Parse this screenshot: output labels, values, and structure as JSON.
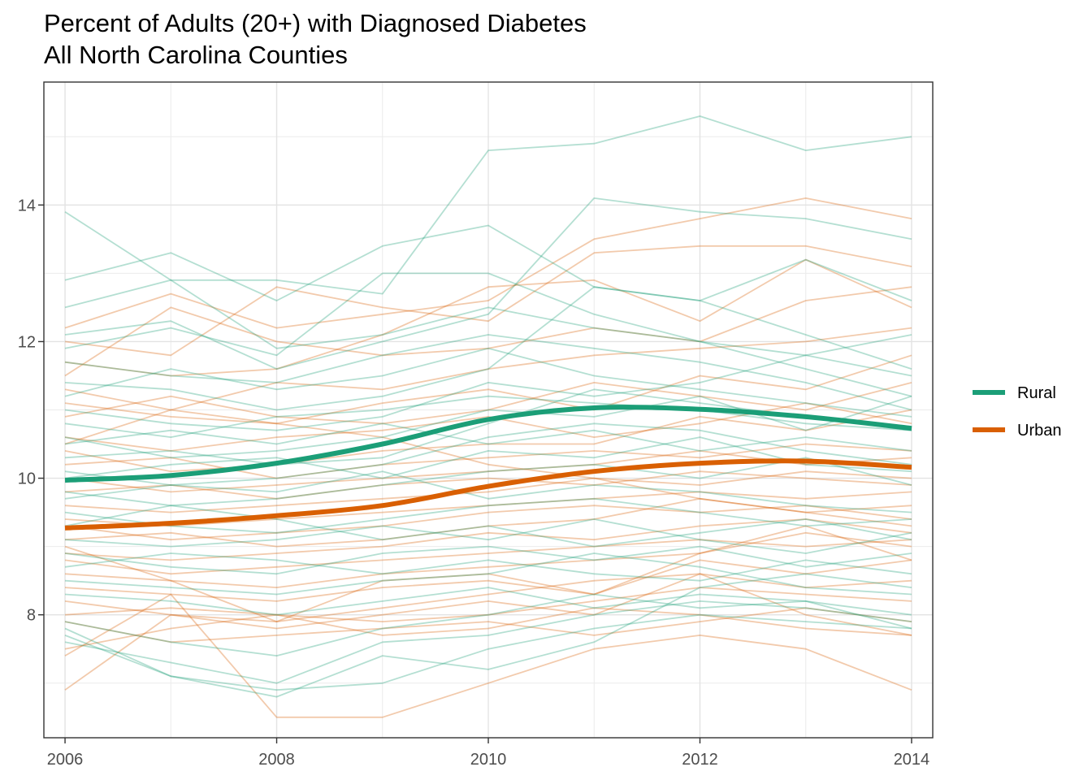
{
  "chart_data": {
    "type": "line",
    "title": "Percent of Adults (20+) with Diagnosed Diabetes",
    "subtitle": "All North Carolina Counties",
    "xlabel": "",
    "ylabel": "",
    "x": [
      2006,
      2007,
      2008,
      2009,
      2010,
      2011,
      2012,
      2013,
      2014
    ],
    "x_ticks": [
      2006,
      2008,
      2010,
      2012,
      2014
    ],
    "y_ticks": [
      8,
      10,
      12,
      14
    ],
    "xlim": [
      2005.8,
      2014.2
    ],
    "ylim": [
      6.2,
      15.8
    ],
    "grid": true,
    "legend_position": "right",
    "colors": {
      "Rural": "#1b9e77",
      "Urban": "#d95f02"
    },
    "series": [
      {
        "name": "Rural",
        "values": [
          9.97,
          10.04,
          10.22,
          10.5,
          10.86,
          11.03,
          11.01,
          10.9,
          10.73
        ]
      },
      {
        "name": "Urban",
        "values": [
          9.27,
          9.34,
          9.45,
          9.6,
          9.88,
          10.1,
          10.22,
          10.25,
          10.16
        ]
      }
    ],
    "county_lines": {
      "Rural": [
        [
          13.9,
          12.9,
          11.9,
          12.1,
          12.5,
          12.2,
          12.0,
          11.8,
          11.5
        ],
        [
          12.9,
          13.3,
          12.6,
          13.4,
          13.7,
          12.8,
          12.6,
          13.2,
          12.6
        ],
        [
          12.5,
          12.9,
          12.9,
          12.7,
          14.8,
          14.9,
          15.3,
          14.8,
          15.0
        ],
        [
          12.1,
          12.3,
          11.6,
          12.0,
          12.4,
          14.1,
          13.9,
          13.8,
          13.5
        ],
        [
          11.9,
          12.2,
          11.8,
          13.0,
          13.0,
          12.4,
          12.0,
          11.6,
          11.2
        ],
        [
          11.7,
          11.5,
          11.4,
          11.8,
          12.1,
          11.9,
          11.7,
          11.4,
          11.0
        ],
        [
          11.4,
          11.3,
          11.0,
          11.2,
          11.6,
          12.8,
          12.6,
          12.1,
          11.6
        ],
        [
          11.2,
          11.6,
          11.3,
          11.5,
          11.9,
          11.5,
          11.3,
          11.1,
          10.9
        ],
        [
          11.0,
          10.8,
          10.7,
          10.9,
          11.4,
          11.2,
          11.4,
          11.8,
          12.1
        ],
        [
          10.8,
          10.6,
          10.9,
          11.0,
          11.2,
          11.1,
          11.0,
          10.8,
          10.7
        ],
        [
          10.6,
          10.3,
          10.4,
          10.6,
          11.0,
          10.9,
          11.2,
          10.7,
          11.2
        ],
        [
          10.5,
          10.7,
          10.5,
          10.8,
          10.5,
          10.7,
          10.4,
          10.6,
          10.4
        ],
        [
          10.3,
          10.4,
          10.2,
          10.3,
          10.8,
          11.3,
          11.1,
          10.9,
          10.7
        ],
        [
          10.1,
          9.9,
          10.0,
          10.2,
          10.6,
          10.8,
          10.7,
          10.4,
          10.2
        ],
        [
          10.0,
          10.2,
          10.3,
          10.0,
          10.4,
          10.3,
          10.6,
          10.2,
          10.1
        ],
        [
          9.8,
          9.6,
          9.7,
          9.9,
          10.1,
          10.2,
          10.0,
          10.3,
          9.9
        ],
        [
          9.7,
          9.9,
          9.8,
          10.1,
          9.7,
          9.9,
          9.8,
          9.6,
          9.5
        ],
        [
          9.5,
          9.3,
          9.2,
          9.4,
          9.6,
          9.7,
          9.5,
          9.3,
          9.4
        ],
        [
          9.3,
          9.6,
          9.4,
          9.1,
          9.3,
          9.0,
          9.2,
          9.4,
          9.1
        ],
        [
          9.1,
          9.0,
          9.1,
          9.3,
          9.1,
          9.4,
          9.1,
          8.9,
          9.2
        ],
        [
          8.9,
          8.7,
          8.6,
          8.9,
          9.0,
          8.8,
          9.0,
          8.7,
          8.9
        ],
        [
          8.7,
          8.9,
          8.8,
          8.6,
          8.8,
          8.6,
          8.5,
          8.8,
          8.6
        ],
        [
          8.5,
          8.4,
          8.3,
          8.5,
          8.6,
          8.9,
          8.7,
          8.4,
          8.3
        ],
        [
          8.3,
          8.2,
          8.0,
          8.2,
          8.4,
          8.1,
          8.3,
          8.2,
          8.0
        ],
        [
          7.9,
          7.6,
          7.4,
          7.8,
          8.0,
          8.3,
          8.1,
          8.2,
          7.8
        ],
        [
          7.8,
          7.1,
          6.9,
          7.0,
          7.5,
          7.8,
          8.0,
          7.9,
          7.8
        ],
        [
          7.7,
          7.1,
          6.8,
          7.4,
          7.2,
          7.6,
          8.4,
          8.6,
          8.4
        ],
        [
          7.6,
          7.3,
          7.0,
          7.6,
          7.7,
          8.0,
          8.2,
          8.1,
          7.9
        ]
      ],
      "Urban": [
        [
          12.2,
          12.7,
          12.2,
          12.4,
          12.6,
          13.5,
          13.8,
          14.1,
          13.8
        ],
        [
          12.0,
          11.8,
          12.8,
          12.5,
          12.3,
          13.3,
          13.4,
          13.4,
          13.1
        ],
        [
          11.7,
          11.5,
          11.6,
          12.1,
          12.8,
          12.9,
          12.3,
          13.2,
          12.5
        ],
        [
          11.5,
          12.5,
          12.0,
          11.8,
          11.9,
          12.2,
          12.0,
          12.6,
          12.8
        ],
        [
          11.3,
          11.0,
          11.4,
          11.3,
          11.6,
          11.8,
          11.9,
          12.0,
          12.2
        ],
        [
          11.1,
          10.9,
          10.8,
          11.1,
          11.3,
          11.0,
          11.5,
          11.3,
          11.8
        ],
        [
          10.9,
          11.2,
          10.9,
          10.8,
          11.0,
          11.4,
          11.2,
          11.0,
          11.4
        ],
        [
          10.6,
          10.4,
          10.6,
          10.7,
          10.9,
          10.6,
          10.8,
          11.1,
          10.8
        ],
        [
          10.4,
          10.1,
          10.2,
          10.4,
          10.5,
          10.5,
          10.9,
          10.7,
          11.0
        ],
        [
          10.2,
          10.3,
          10.0,
          10.2,
          10.3,
          10.4,
          10.3,
          10.5,
          10.4
        ],
        [
          10.0,
          9.8,
          9.9,
          10.0,
          10.1,
          10.2,
          10.4,
          10.2,
          10.3
        ],
        [
          9.8,
          9.9,
          9.7,
          9.9,
          10.0,
          9.9,
          10.1,
          10.0,
          9.9
        ],
        [
          9.6,
          9.5,
          9.6,
          9.7,
          9.8,
          10.0,
          9.9,
          10.1,
          10.0
        ],
        [
          9.4,
          9.3,
          9.4,
          9.5,
          9.6,
          9.7,
          9.8,
          9.7,
          9.8
        ],
        [
          9.3,
          9.1,
          9.2,
          9.3,
          9.5,
          9.6,
          9.5,
          9.6,
          9.4
        ],
        [
          9.1,
          9.2,
          9.0,
          9.1,
          9.3,
          9.4,
          9.7,
          9.5,
          9.6
        ],
        [
          8.9,
          8.8,
          8.9,
          9.0,
          9.2,
          9.1,
          9.3,
          9.4,
          9.2
        ],
        [
          8.8,
          8.6,
          8.7,
          8.8,
          8.9,
          9.0,
          9.1,
          9.0,
          9.1
        ],
        [
          8.6,
          8.5,
          8.4,
          8.6,
          8.7,
          8.8,
          8.9,
          9.2,
          9.0
        ],
        [
          8.4,
          8.3,
          8.2,
          8.4,
          8.5,
          8.3,
          8.8,
          8.6,
          8.8
        ],
        [
          8.2,
          8.0,
          7.9,
          8.1,
          8.3,
          8.5,
          8.6,
          8.4,
          8.5
        ],
        [
          8.0,
          8.1,
          8.0,
          7.9,
          8.0,
          8.2,
          8.4,
          8.3,
          8.2
        ],
        [
          7.9,
          7.6,
          7.7,
          7.8,
          7.9,
          7.7,
          7.9,
          8.1,
          7.9
        ],
        [
          7.5,
          7.8,
          8.0,
          7.7,
          7.8,
          8.1,
          8.0,
          7.8,
          7.7
        ],
        [
          7.4,
          8.3,
          6.5,
          6.5,
          7.0,
          7.5,
          7.7,
          7.5,
          6.9
        ],
        [
          6.9,
          8.0,
          7.8,
          8.0,
          8.2,
          8.0,
          8.6,
          8.0,
          7.7
        ],
        [
          10.5,
          11.0,
          10.8,
          10.6,
          10.2,
          10.0,
          9.7,
          9.5,
          9.3
        ],
        [
          9.0,
          8.5,
          7.9,
          8.5,
          8.6,
          8.3,
          8.9,
          9.3,
          8.8
        ]
      ]
    }
  }
}
